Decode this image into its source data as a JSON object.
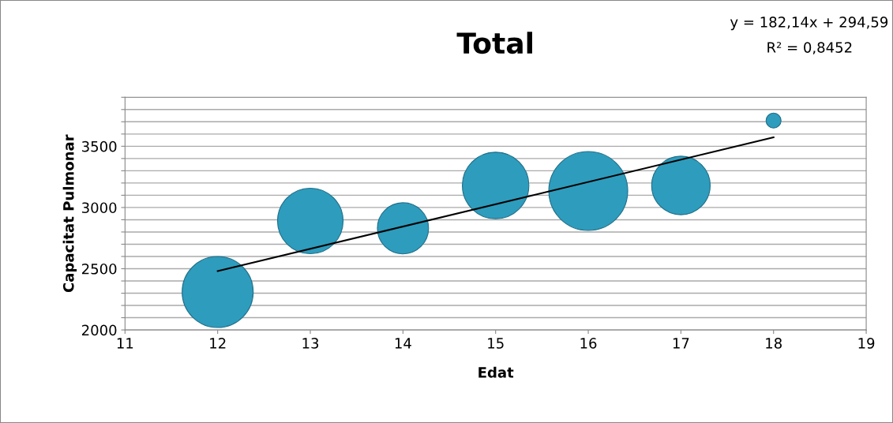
{
  "chart_data": {
    "type": "bubble",
    "title": "Total",
    "xlabel": "Edat",
    "ylabel": "Capacitat Pulmonar",
    "annotations": [
      "y = 182,14x + 294,59",
      "R² = 0,8452"
    ],
    "xlim": [
      11,
      19
    ],
    "xticks": [
      11,
      12,
      13,
      14,
      15,
      16,
      17,
      18,
      19
    ],
    "ylim": [
      2000,
      3900
    ],
    "yticks": [
      2000,
      {
        "value": 2100,
        "label": null
      },
      {
        "value": 2200,
        "label": null
      },
      {
        "value": 2300,
        "label": null
      },
      {
        "value": 2400,
        "label": null
      },
      2500,
      {
        "value": 2600,
        "label": null
      },
      {
        "value": 2700,
        "label": null
      },
      {
        "value": 2800,
        "label": null
      },
      {
        "value": 2900,
        "label": null
      },
      3000,
      {
        "value": 3100,
        "label": null
      },
      {
        "value": 3200,
        "label": null
      },
      {
        "value": 3300,
        "label": null
      },
      {
        "value": 3400,
        "label": null
      },
      3500,
      {
        "value": 3600,
        "label": null
      },
      {
        "value": 3700,
        "label": null
      },
      {
        "value": 3800,
        "label": null
      },
      {
        "value": 3900,
        "label": null
      }
    ],
    "grid": "y",
    "series": [
      {
        "color": "#2e9cbd",
        "x": [
          12,
          13,
          14,
          15,
          16,
          17,
          18
        ],
        "values": [
          2310,
          2890,
          2830,
          3180,
          3135,
          3180,
          3710
        ],
        "sizes": [
          0.81,
          0.69,
          0.42,
          0.71,
          1,
          0.55,
          0.036
        ]
      },
      {
        "type": "line",
        "color": "#000000",
        "x": [
          12,
          18
        ],
        "values": [
          2480,
          3573
        ]
      }
    ]
  }
}
